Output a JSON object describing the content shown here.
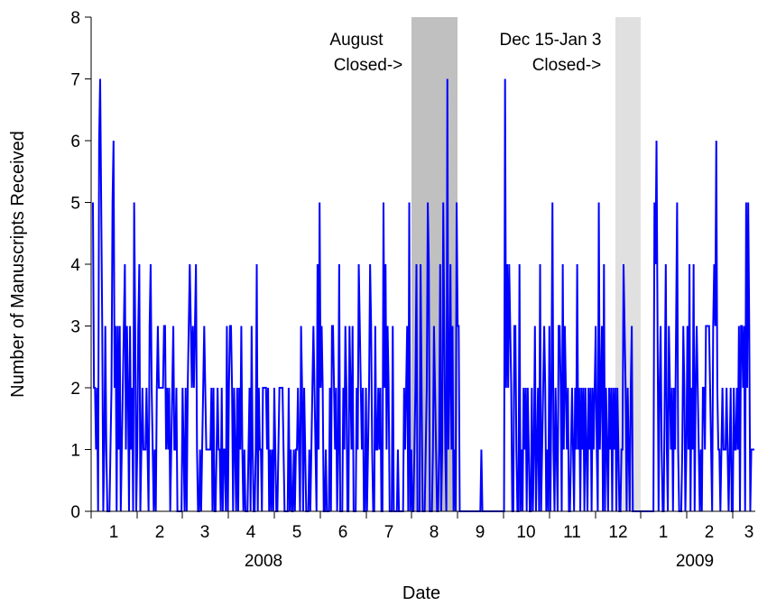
{
  "chart_data": {
    "type": "line",
    "title": "",
    "xlabel": "Date",
    "ylabel": "Number of Manuscripts Received",
    "ylim": [
      0,
      8
    ],
    "yticks": [
      0,
      1,
      2,
      3,
      4,
      5,
      6,
      7,
      8
    ],
    "grid": false,
    "legend": "none",
    "line_color": "#0000ff",
    "month_labels": [
      "1",
      "2",
      "3",
      "4",
      "5",
      "6",
      "7",
      "8",
      "9",
      "10",
      "11",
      "12",
      "1",
      "2",
      "3"
    ],
    "year_labels": [
      "2008",
      "2009"
    ],
    "closed_periods": [
      {
        "label_line1": "August",
        "label_line2": "Closed->",
        "start_day": 214,
        "end_day": 244,
        "color": "#c0c0c0"
      },
      {
        "label_line1": "Dec 15-Jan 3",
        "label_line2": "Closed->",
        "start_day": 349,
        "end_day": 368,
        "color": "#e0e0e0"
      }
    ],
    "series": [
      {
        "x_start": "2007-12-27",
        "step_days": 1,
        "values": [
          5,
          2,
          2,
          1,
          2,
          0,
          6,
          7,
          5,
          3,
          0,
          1,
          3,
          1,
          0,
          0,
          0,
          1,
          2,
          5,
          6,
          2,
          3,
          0,
          3,
          1,
          3,
          0,
          1,
          2,
          3,
          4,
          1,
          3,
          2,
          0,
          3,
          1,
          2,
          0,
          5,
          3,
          0,
          1,
          3,
          4,
          0,
          1,
          2,
          1,
          1,
          1,
          2,
          1,
          0,
          3,
          4,
          2,
          1,
          0,
          1,
          0,
          2,
          3,
          2,
          2,
          2,
          2,
          2,
          3,
          3,
          1,
          2,
          1,
          2,
          0,
          1,
          2,
          3,
          1,
          1,
          2,
          0,
          0,
          0,
          0,
          0,
          2,
          1,
          0,
          2,
          0,
          2,
          3,
          4,
          3,
          2,
          3,
          2,
          3,
          4,
          1,
          0,
          0,
          1,
          0,
          1,
          2,
          3,
          2,
          1,
          1,
          1,
          1,
          1,
          2,
          0,
          2,
          0,
          0,
          1,
          2,
          1,
          1,
          0,
          2,
          0,
          1,
          1,
          0,
          3,
          0,
          2,
          3,
          3,
          2,
          0,
          2,
          1,
          0,
          2,
          0,
          2,
          1,
          3,
          1,
          0,
          1,
          0,
          0,
          0,
          1,
          2,
          0,
          3,
          1,
          0,
          0,
          1,
          4,
          0,
          2,
          1,
          1,
          0,
          2,
          2,
          2,
          2,
          1,
          2,
          0,
          1,
          0,
          1,
          0,
          2,
          1,
          0,
          0,
          1,
          2,
          2,
          2,
          2,
          1,
          0,
          0,
          0,
          0,
          2,
          0,
          1,
          0,
          0,
          1,
          0,
          1,
          1,
          2,
          1,
          0,
          3,
          2,
          0,
          2,
          1,
          0,
          0,
          0,
          1,
          0,
          1,
          2,
          3,
          2,
          1,
          0,
          4,
          1,
          5,
          2,
          3,
          2,
          0,
          0,
          1,
          0,
          0,
          0,
          2,
          0,
          3,
          3,
          2,
          1,
          2,
          0,
          1,
          4,
          0,
          0,
          0,
          2,
          1,
          3,
          2,
          0,
          0,
          3,
          2,
          1,
          3,
          0,
          0,
          0,
          2,
          1,
          4,
          3,
          2,
          1,
          2,
          0,
          0,
          2,
          0,
          1,
          2,
          4,
          3,
          1,
          0,
          0,
          3,
          1,
          1,
          2,
          1,
          2,
          0,
          0,
          5,
          2,
          4,
          1,
          3,
          2,
          0,
          0,
          0,
          3,
          0,
          0,
          0,
          0,
          1,
          0,
          0,
          0,
          0,
          0,
          2,
          1,
          2,
          3,
          0,
          5,
          0,
          1,
          0,
          0,
          1,
          2,
          4,
          0,
          0,
          0,
          4,
          2,
          0,
          0,
          0,
          1,
          2,
          5,
          4,
          0,
          0,
          0,
          1,
          3,
          2,
          1,
          0,
          0,
          1,
          4,
          0,
          1,
          5,
          3,
          1,
          0,
          7,
          1,
          2,
          4,
          1,
          3,
          0,
          1,
          0,
          5,
          3,
          3,
          0,
          0,
          0,
          0,
          0,
          0,
          0,
          0,
          0,
          0,
          0,
          0,
          0,
          0,
          0,
          0,
          0,
          0,
          0,
          0,
          0,
          1,
          0,
          0,
          0,
          0,
          0,
          0,
          0,
          0,
          0,
          0,
          0,
          0,
          0,
          0,
          0,
          0,
          0,
          0,
          0,
          0,
          0,
          0,
          7,
          2,
          4,
          2,
          4,
          3,
          2,
          0,
          0,
          3,
          3,
          1,
          0,
          0,
          4,
          0,
          1,
          0,
          2,
          1,
          2,
          0,
          2,
          1,
          0,
          0,
          2,
          0,
          1,
          3,
          0,
          1,
          2,
          0,
          4,
          0,
          1,
          2,
          3,
          2,
          0,
          1,
          0,
          3,
          0,
          2,
          5,
          1,
          0,
          2,
          1,
          0,
          3,
          3,
          2,
          0,
          4,
          1,
          3,
          2,
          1,
          2,
          0,
          0,
          1,
          2,
          1,
          0,
          2,
          1,
          4,
          1,
          2,
          0,
          2,
          1,
          2,
          0,
          2,
          1,
          0,
          2,
          1,
          2,
          0,
          2,
          1,
          2,
          3,
          1,
          0,
          5,
          1,
          2,
          3,
          0,
          4,
          0,
          2,
          1,
          0,
          2,
          1,
          2,
          0,
          2,
          1,
          2,
          0,
          2,
          1,
          0,
          0,
          1,
          1,
          4,
          3,
          2,
          0,
          2,
          1,
          0,
          2,
          3,
          0,
          0,
          0,
          0,
          0,
          0,
          0,
          0,
          0,
          0,
          0,
          0,
          0,
          0,
          0,
          0,
          0,
          0,
          0,
          0,
          0,
          5,
          4,
          6,
          3,
          0,
          2,
          3,
          1,
          0,
          0,
          2,
          4,
          1,
          0,
          3,
          2,
          1,
          2,
          0,
          2,
          1,
          3,
          5,
          1,
          0,
          0,
          0,
          1,
          3,
          2,
          0,
          1,
          3,
          1,
          4,
          0,
          2,
          1,
          4,
          0,
          2,
          3,
          2,
          1,
          0,
          1,
          0,
          2,
          2,
          1,
          3,
          3,
          3,
          3,
          2,
          1,
          0,
          3,
          4,
          3,
          6,
          2,
          1,
          1,
          0,
          1,
          2,
          1,
          1,
          1,
          2,
          1,
          0,
          1,
          2,
          0,
          0,
          2,
          1,
          1,
          2,
          1,
          3,
          0,
          3,
          3,
          2,
          3,
          0,
          5,
          2,
          5,
          3,
          0,
          1,
          1,
          1,
          1
        ]
      }
    ]
  }
}
